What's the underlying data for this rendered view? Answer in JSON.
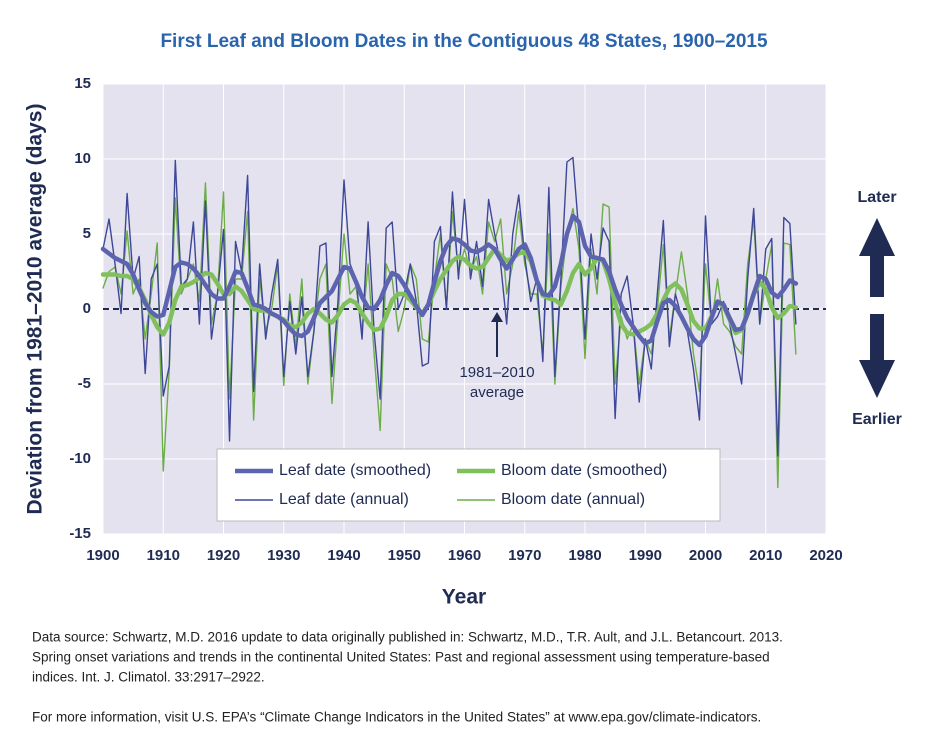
{
  "chart_data": {
    "type": "line",
    "title": "First Leaf and Bloom Dates in the Contiguous 48 States, 1900–2015",
    "x_label": "Year",
    "y_label": "Deviation from 1981–2010 average (days)",
    "annotation": [
      "1981–2010",
      "average"
    ],
    "direction_labels": {
      "up": "Later",
      "down": "Earlier"
    },
    "x": [
      1900,
      1901,
      1902,
      1903,
      1904,
      1905,
      1906,
      1907,
      1908,
      1909,
      1910,
      1911,
      1912,
      1913,
      1914,
      1915,
      1916,
      1917,
      1918,
      1919,
      1920,
      1921,
      1922,
      1923,
      1924,
      1925,
      1926,
      1927,
      1928,
      1929,
      1930,
      1931,
      1932,
      1933,
      1934,
      1935,
      1936,
      1937,
      1938,
      1939,
      1940,
      1941,
      1942,
      1943,
      1944,
      1945,
      1946,
      1947,
      1948,
      1949,
      1950,
      1951,
      1952,
      1953,
      1954,
      1955,
      1956,
      1957,
      1958,
      1959,
      1960,
      1961,
      1962,
      1963,
      1964,
      1965,
      1966,
      1967,
      1968,
      1969,
      1970,
      1971,
      1972,
      1973,
      1974,
      1975,
      1976,
      1977,
      1978,
      1979,
      1980,
      1981,
      1982,
      1983,
      1984,
      1985,
      1986,
      1987,
      1988,
      1989,
      1990,
      1991,
      1992,
      1993,
      1994,
      1995,
      1996,
      1997,
      1998,
      1999,
      2000,
      2001,
      2002,
      2003,
      2004,
      2005,
      2006,
      2007,
      2008,
      2009,
      2010,
      2011,
      2012,
      2013,
      2014,
      2015
    ],
    "series": [
      {
        "name": "Leaf date (smoothed)",
        "color": "#5c64b0",
        "width": 4.5,
        "values": [
          4.0,
          3.7,
          3.4,
          3.2,
          3.0,
          2.3,
          1.3,
          0.4,
          -0.2,
          -0.5,
          -0.4,
          1.2,
          2.8,
          3.1,
          3.0,
          2.7,
          2.2,
          1.6,
          1.0,
          0.7,
          0.7,
          1.5,
          2.5,
          2.4,
          1.4,
          0.3,
          0.2,
          0.0,
          -0.3,
          -0.5,
          -0.8,
          -1.3,
          -1.7,
          -1.8,
          -1.5,
          -0.6,
          0.4,
          0.8,
          1.2,
          2.0,
          2.8,
          2.7,
          1.8,
          0.8,
          0.1,
          0.0,
          0.6,
          1.6,
          2.4,
          2.2,
          1.6,
          0.9,
          0.2,
          -0.4,
          0.3,
          1.8,
          3.2,
          4.2,
          4.7,
          4.6,
          4.3,
          3.9,
          3.8,
          4.0,
          4.3,
          4.0,
          3.3,
          2.7,
          3.3,
          4.0,
          4.3,
          3.4,
          1.9,
          1.0,
          0.9,
          1.5,
          3.0,
          5.0,
          6.2,
          5.8,
          4.2,
          3.5,
          3.4,
          3.3,
          2.5,
          1.3,
          0.3,
          -0.6,
          -1.2,
          -1.8,
          -2.3,
          -2.1,
          -0.8,
          0.4,
          0.6,
          0.2,
          -0.5,
          -1.3,
          -2.0,
          -2.4,
          -1.8,
          -0.6,
          0.5,
          0.3,
          -0.6,
          -1.4,
          -1.3,
          -0.3,
          1.0,
          2.2,
          2.0,
          1.1,
          0.8,
          1.3,
          1.9,
          1.7
        ]
      },
      {
        "name": "Bloom date (smoothed)",
        "color": "#80c05c",
        "width": 4.5,
        "values": [
          2.3,
          2.3,
          2.3,
          2.2,
          2.2,
          2.0,
          1.4,
          0.6,
          -0.4,
          -1.2,
          -1.7,
          -0.9,
          0.6,
          1.5,
          1.6,
          1.8,
          2.1,
          2.4,
          2.3,
          1.7,
          1.0,
          1.0,
          1.5,
          1.2,
          0.6,
          0.0,
          -0.1,
          -0.1,
          -0.3,
          -0.5,
          -0.7,
          -1.1,
          -1.2,
          -0.9,
          -0.3,
          0.0,
          -0.3,
          -0.7,
          -0.9,
          -0.4,
          0.3,
          0.6,
          0.4,
          -0.3,
          -0.9,
          -1.4,
          -1.3,
          -0.5,
          0.6,
          1.0,
          1.0,
          0.6,
          0.1,
          -0.3,
          0.3,
          1.2,
          2.0,
          2.6,
          3.2,
          3.5,
          3.3,
          2.9,
          2.7,
          2.8,
          3.4,
          4.0,
          3.6,
          3.2,
          3.4,
          3.7,
          3.8,
          3.2,
          1.9,
          0.9,
          0.7,
          0.6,
          0.3,
          1.2,
          2.4,
          3.0,
          2.3,
          2.7,
          3.4,
          3.2,
          2.0,
          0.4,
          -1.0,
          -1.6,
          -1.7,
          -1.5,
          -1.3,
          -1.0,
          -0.3,
          0.6,
          1.4,
          1.7,
          1.3,
          0.3,
          -0.8,
          -1.3,
          -1.3,
          -0.5,
          0.4,
          0.2,
          -0.7,
          -1.6,
          -1.4,
          -0.3,
          1.0,
          1.8,
          1.3,
          0.1,
          -0.6,
          -0.3,
          0.2,
          0.1
        ]
      },
      {
        "name": "Leaf date (annual)",
        "color": "#3e4797",
        "width": 1.4,
        "values": [
          4,
          6,
          3,
          -0.3,
          7.7,
          2,
          3.5,
          -4.3,
          2,
          3,
          -5.8,
          -3.8,
          9.9,
          1.5,
          2,
          5.8,
          -1,
          7.2,
          -2,
          1,
          5.3,
          -8.8,
          4.5,
          2.5,
          8.9,
          -5.5,
          3,
          -2,
          1,
          3.3,
          -4.5,
          0.5,
          -3,
          0.8,
          -4.5,
          -1.5,
          4.2,
          4.4,
          -4.5,
          0.5,
          8.6,
          3,
          2,
          -2,
          5.8,
          -1.5,
          -6,
          5.4,
          5.8,
          0,
          1,
          3,
          0.5,
          -3.8,
          -3.6,
          4.5,
          5.5,
          0,
          7.8,
          2,
          7.3,
          2,
          4.5,
          1.5,
          7.3,
          5,
          3,
          -1,
          5,
          7.6,
          3.5,
          0.5,
          2,
          -3.5,
          8.1,
          -4.5,
          2,
          9.8,
          10.1,
          5,
          -2,
          5,
          2,
          5.4,
          4.5,
          -7.3,
          1,
          2.2,
          -1,
          -6.2,
          -2,
          -4,
          1,
          5.9,
          -2.5,
          1,
          -0.5,
          -1.5,
          -4,
          -7.4,
          6.2,
          -1,
          -0.5,
          0.5,
          -1,
          -3,
          -5,
          2,
          6.7,
          -1,
          4,
          4.7,
          -9.8,
          6.1,
          5.7,
          -1
        ]
      },
      {
        "name": "Bloom date (annual)",
        "color": "#6cad47",
        "width": 1.4,
        "values": [
          1.4,
          2.5,
          2.8,
          1,
          5.2,
          1,
          2,
          -2,
          1,
          4.4,
          -10.8,
          -4,
          7.4,
          1,
          2,
          3,
          0.5,
          8.4,
          -1,
          1,
          7.8,
          -6,
          2,
          2,
          6.5,
          -7.4,
          2,
          -1.5,
          0,
          3,
          -5.1,
          1,
          -2.5,
          2,
          -5,
          -1.5,
          2,
          3,
          -6.3,
          -0.5,
          5,
          1,
          1.5,
          -1.5,
          3,
          -3,
          -8.1,
          3,
          2,
          -1.5,
          0,
          3,
          2,
          -2,
          -2.2,
          2,
          5,
          0,
          6.5,
          2.5,
          4,
          2.5,
          3.5,
          1,
          5.8,
          4.5,
          6,
          1,
          3,
          6.5,
          3,
          1,
          1,
          -3,
          5,
          -5,
          1.5,
          5,
          6.7,
          4,
          -3.3,
          4,
          1,
          7,
          6.8,
          -5,
          -0.5,
          -2,
          -1,
          -5,
          -2,
          -3,
          0,
          4.3,
          -2,
          1,
          3.8,
          1,
          -3,
          -5.5,
          3,
          -1,
          2,
          -1,
          -1.5,
          -2.5,
          -3,
          3,
          6,
          -1,
          2,
          4.3,
          -11.9,
          4.4,
          4.3,
          -3
        ]
      }
    ],
    "xlim": [
      1900,
      2020
    ],
    "xticks": [
      1900,
      1910,
      1920,
      1930,
      1940,
      1950,
      1960,
      1970,
      1980,
      1990,
      2000,
      2010,
      2020
    ],
    "ylim": [
      -15,
      15
    ],
    "yticks": [
      -15,
      -10,
      -5,
      0,
      5,
      10,
      15
    ],
    "grid": true,
    "reference_line": 0
  },
  "notes": [
    "Data source: Schwartz, M.D. 2016 update to data originally published in: Schwartz, M.D., T.R. Ault, and J.L. Betancourt. 2013.",
    "Spring onset variations and trends in the continental United States: Past and regional assessment using temperature-based",
    "indices. Int. J. Climatol. 33:2917–2922.",
    "For more information, visit U.S. EPA’s “Climate Change Indicators in the United States” at www.epa.gov/climate-indicators."
  ]
}
